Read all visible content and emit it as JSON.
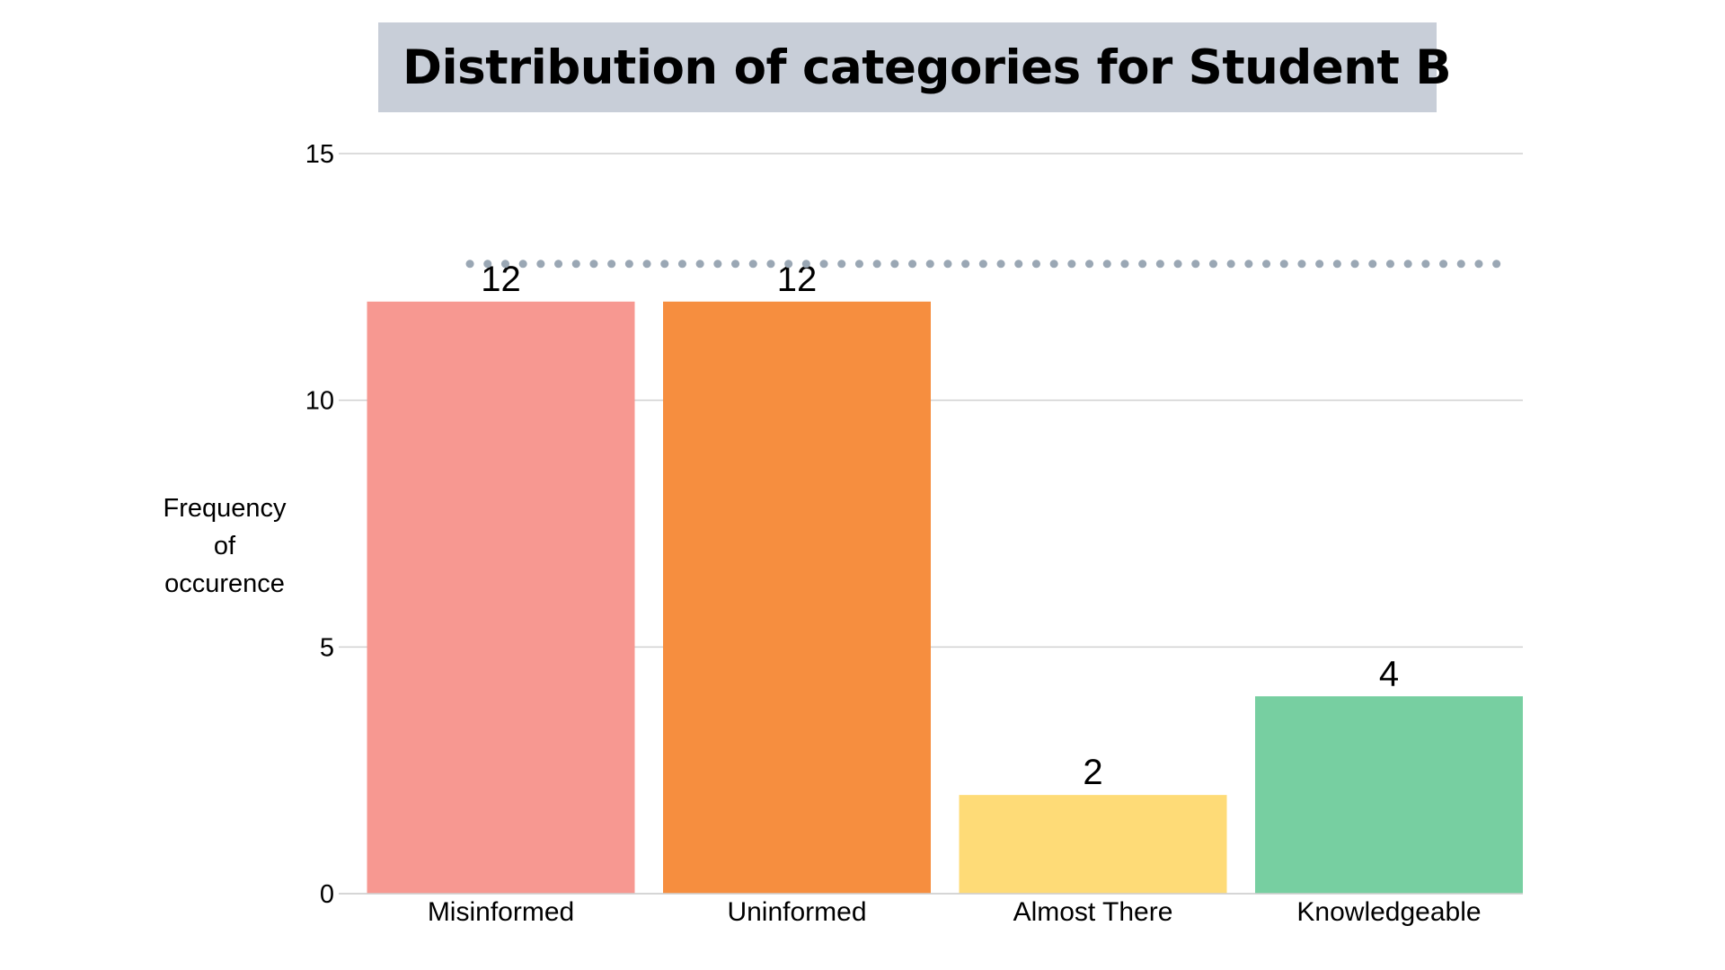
{
  "chart_data": {
    "type": "bar",
    "title": "Distribution of categories for Student B",
    "xlabel": "",
    "ylabel_lines": [
      "Frequency",
      "of",
      "occurence"
    ],
    "categories": [
      "Misinformed",
      "Uninformed",
      "Almost There",
      "Knowledgeable"
    ],
    "values": [
      12,
      12,
      2,
      4
    ],
    "data_labels": [
      "12",
      "12",
      "2",
      "4"
    ],
    "colors": [
      "#f79891",
      "#f68e3f",
      "#fedb77",
      "#77cfa1"
    ],
    "ylim": [
      0,
      15
    ],
    "yticks": [
      0,
      5,
      10,
      15
    ],
    "ytick_labels": [
      "0",
      "5",
      "10",
      "15"
    ],
    "grid": true,
    "grid_color": "#d0d0d0",
    "reference_line": {
      "value": 12,
      "style": "dotted",
      "color": "#9aa7b4"
    }
  }
}
